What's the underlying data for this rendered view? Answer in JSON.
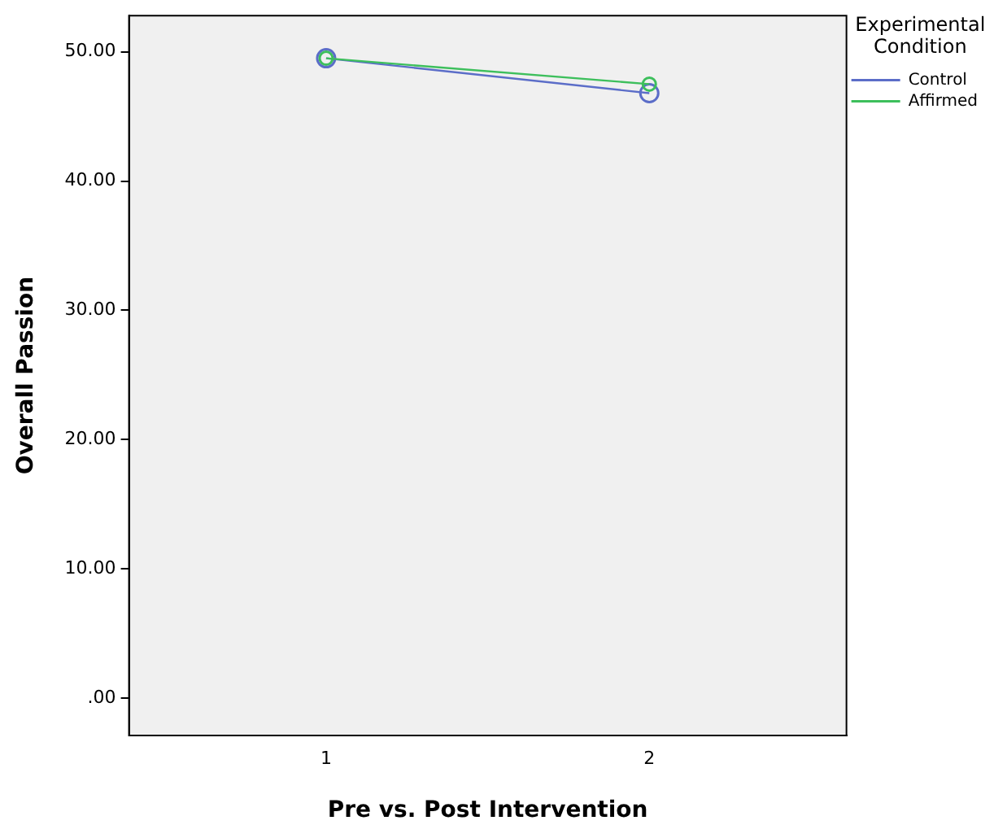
{
  "chart_data": {
    "type": "line",
    "xlabel": "Pre vs. Post Intervention",
    "ylabel": "Overall Passion",
    "legend_title": "Experimental Condition",
    "x": [
      1,
      2
    ],
    "series": [
      {
        "name": "Control",
        "color": "#5b6dc8",
        "values": [
          49.5,
          46.8
        ]
      },
      {
        "name": "Affirmed",
        "color": "#3dbf5c",
        "values": [
          49.5,
          47.5
        ]
      }
    ],
    "xlim": [
      0.39,
      2.61
    ],
    "xticks": [
      1,
      2
    ],
    "ylim": [
      -2.9,
      52.8
    ],
    "yticks": [
      {
        "value": 0,
        "label": ".00"
      },
      {
        "value": 10,
        "label": "10.00"
      },
      {
        "value": 20,
        "label": "20.00"
      },
      {
        "value": 30,
        "label": "30.00"
      },
      {
        "value": 40,
        "label": "40.00"
      },
      {
        "value": 50,
        "label": "50.00"
      }
    ],
    "grid": false,
    "legend": "top right",
    "marker": "circle",
    "line_style": "solid"
  }
}
